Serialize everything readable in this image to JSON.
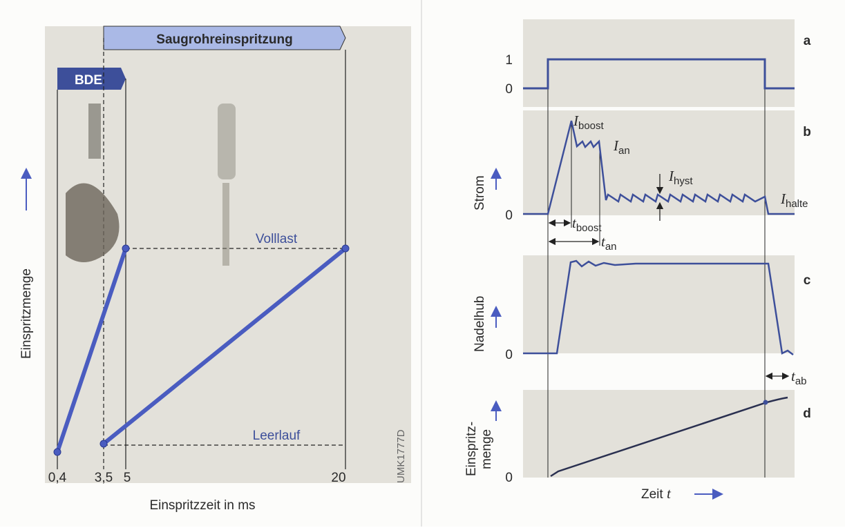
{
  "left": {
    "banner_port": "Saugrohreinspritzung",
    "banner_gdi": "BDE",
    "y_label": "Einspritzmenge",
    "x_label": "Einspritzzeit in ms",
    "x_ticks": [
      "0,4",
      "3,5",
      "5",
      "20"
    ],
    "full_load": "Volllast",
    "idle": "Leerlauf",
    "code": "UMK1777D"
  },
  "right": {
    "panels": [
      "a",
      "b",
      "c",
      "d"
    ],
    "a_ticks": [
      "1",
      "0"
    ],
    "b": {
      "y_label": "Strom",
      "zero": "0",
      "i_boost": {
        "symbol": "I",
        "sub": "boost"
      },
      "i_an": {
        "symbol": "I",
        "sub": "an"
      },
      "i_hyst": {
        "symbol": "I",
        "sub": "hyst"
      },
      "i_halte": {
        "symbol": "I",
        "sub": "halte"
      },
      "t_boost": {
        "symbol": "t",
        "sub": "boost"
      },
      "t_an": {
        "symbol": "t",
        "sub": "an"
      }
    },
    "c": {
      "y_label": "Nadelhub",
      "zero": "0",
      "t_ab": {
        "symbol": "t",
        "sub": "ab"
      }
    },
    "d": {
      "y_label_1": "Einspritz-",
      "y_label_2": "menge",
      "zero": "0"
    },
    "x_label": "Zeit",
    "x_symbol": "t"
  }
}
